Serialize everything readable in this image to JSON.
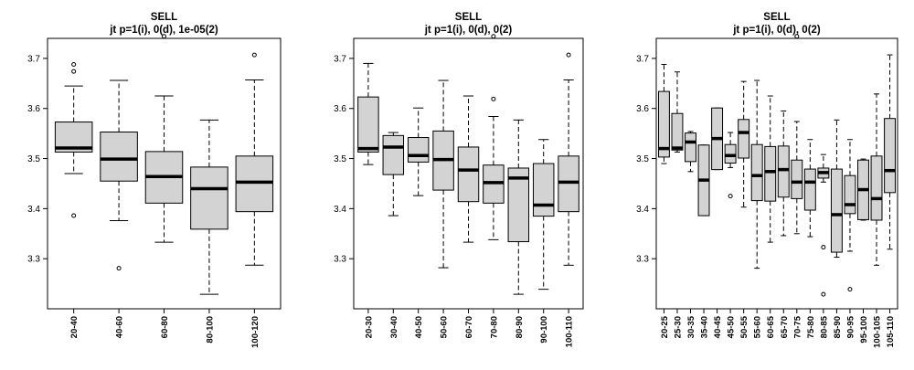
{
  "chart_data": [
    {
      "type": "boxplot",
      "title": "SELL",
      "subtitle": "jt p=1(i), 0(d), 1e-05(2)",
      "ylim": [
        3.2,
        3.74
      ],
      "yticks": [
        3.3,
        3.4,
        3.5,
        3.6,
        3.7
      ],
      "categories": [
        "20-40",
        "40-60",
        "60-80",
        "80-100",
        "100-120"
      ],
      "boxes": [
        {
          "min": 3.47,
          "q1": 3.513,
          "median": 3.521,
          "q3": 3.573,
          "max": 3.645,
          "outliers": [
            3.688,
            3.674,
            3.386
          ]
        },
        {
          "min": 3.376,
          "q1": 3.455,
          "median": 3.499,
          "q3": 3.553,
          "max": 3.656,
          "outliers": [
            3.281
          ]
        },
        {
          "min": 3.333,
          "q1": 3.411,
          "median": 3.464,
          "q3": 3.514,
          "max": 3.625,
          "outliers": [
            3.744
          ]
        },
        {
          "min": 3.229,
          "q1": 3.359,
          "median": 3.44,
          "q3": 3.483,
          "max": 3.577,
          "outliers": []
        },
        {
          "min": 3.287,
          "q1": 3.394,
          "median": 3.453,
          "q3": 3.505,
          "max": 3.657,
          "outliers": [
            3.707
          ]
        }
      ]
    },
    {
      "type": "boxplot",
      "title": "SELL",
      "subtitle": "jt p=1(i), 0(d), 0(2)",
      "ylim": [
        3.2,
        3.74
      ],
      "yticks": [
        3.3,
        3.4,
        3.5,
        3.6,
        3.7
      ],
      "categories": [
        "20-30",
        "30-40",
        "40-50",
        "50-60",
        "60-70",
        "70-80",
        "80-90",
        "90-100",
        "100-110"
      ],
      "boxes": [
        {
          "min": 3.488,
          "q1": 3.513,
          "median": 3.52,
          "q3": 3.623,
          "max": 3.69,
          "outliers": []
        },
        {
          "min": 3.386,
          "q1": 3.468,
          "median": 3.523,
          "q3": 3.546,
          "max": 3.552,
          "outliers": []
        },
        {
          "min": 3.426,
          "q1": 3.493,
          "median": 3.506,
          "q3": 3.542,
          "max": 3.601,
          "outliers": []
        },
        {
          "min": 3.282,
          "q1": 3.437,
          "median": 3.498,
          "q3": 3.555,
          "max": 3.656,
          "outliers": []
        },
        {
          "min": 3.333,
          "q1": 3.414,
          "median": 3.477,
          "q3": 3.523,
          "max": 3.625,
          "outliers": []
        },
        {
          "min": 3.338,
          "q1": 3.411,
          "median": 3.452,
          "q3": 3.487,
          "max": 3.584,
          "outliers": [
            3.619,
            3.744
          ]
        },
        {
          "min": 3.229,
          "q1": 3.334,
          "median": 3.461,
          "q3": 3.481,
          "max": 3.577,
          "outliers": []
        },
        {
          "min": 3.239,
          "q1": 3.385,
          "median": 3.407,
          "q3": 3.49,
          "max": 3.538,
          "outliers": []
        },
        {
          "min": 3.287,
          "q1": 3.394,
          "median": 3.453,
          "q3": 3.505,
          "max": 3.657,
          "outliers": [
            3.707
          ]
        }
      ]
    },
    {
      "type": "boxplot",
      "title": "SELL",
      "subtitle": "jt p=1(i), 0(d), 0(2)",
      "ylim": [
        3.2,
        3.74
      ],
      "yticks": [
        3.3,
        3.4,
        3.5,
        3.6,
        3.7
      ],
      "categories": [
        "20-25",
        "25-30",
        "30-35",
        "35-40",
        "40-45",
        "45-50",
        "50-55",
        "55-60",
        "60-65",
        "65-70",
        "70-75",
        "75-80",
        "80-85",
        "85-90",
        "90-95",
        "95-100",
        "100-105",
        "105-110"
      ],
      "boxes": [
        {
          "min": 3.49,
          "q1": 3.503,
          "median": 3.52,
          "q3": 3.634,
          "max": 3.688,
          "outliers": []
        },
        {
          "min": 3.513,
          "q1": 3.517,
          "median": 3.521,
          "q3": 3.59,
          "max": 3.673,
          "outliers": []
        },
        {
          "min": 3.474,
          "q1": 3.494,
          "median": 3.533,
          "q3": 3.551,
          "max": 3.554,
          "outliers": []
        },
        {
          "min": 3.386,
          "q1": 3.386,
          "median": 3.457,
          "q3": 3.527,
          "max": 3.527,
          "outliers": []
        },
        {
          "min": 3.478,
          "q1": 3.478,
          "median": 3.54,
          "q3": 3.601,
          "max": 3.601,
          "outliers": []
        },
        {
          "min": 3.482,
          "q1": 3.491,
          "median": 3.506,
          "q3": 3.528,
          "max": 3.552,
          "outliers": [
            3.425
          ]
        },
        {
          "min": 3.403,
          "q1": 3.501,
          "median": 3.552,
          "q3": 3.578,
          "max": 3.654,
          "outliers": []
        },
        {
          "min": 3.281,
          "q1": 3.416,
          "median": 3.466,
          "q3": 3.528,
          "max": 3.656,
          "outliers": []
        },
        {
          "min": 3.333,
          "q1": 3.415,
          "median": 3.474,
          "q3": 3.524,
          "max": 3.625,
          "outliers": []
        },
        {
          "min": 3.346,
          "q1": 3.423,
          "median": 3.478,
          "q3": 3.525,
          "max": 3.595,
          "outliers": []
        },
        {
          "min": 3.35,
          "q1": 3.42,
          "median": 3.453,
          "q3": 3.497,
          "max": 3.574,
          "outliers": [
            3.744
          ]
        },
        {
          "min": 3.344,
          "q1": 3.397,
          "median": 3.453,
          "q3": 3.479,
          "max": 3.538,
          "outliers": []
        },
        {
          "min": 3.453,
          "q1": 3.461,
          "median": 3.472,
          "q3": 3.481,
          "max": 3.508,
          "outliers": [
            3.323,
            3.229
          ]
        },
        {
          "min": 3.303,
          "q1": 3.313,
          "median": 3.388,
          "q3": 3.479,
          "max": 3.577,
          "outliers": []
        },
        {
          "min": 3.315,
          "q1": 3.39,
          "median": 3.408,
          "q3": 3.466,
          "max": 3.538,
          "outliers": [
            3.239
          ]
        },
        {
          "min": 3.377,
          "q1": 3.378,
          "median": 3.438,
          "q3": 3.497,
          "max": 3.499,
          "outliers": []
        },
        {
          "min": 3.287,
          "q1": 3.377,
          "median": 3.42,
          "q3": 3.505,
          "max": 3.629,
          "outliers": []
        },
        {
          "min": 3.319,
          "q1": 3.432,
          "median": 3.476,
          "q3": 3.58,
          "max": 3.707,
          "outliers": []
        }
      ]
    }
  ]
}
